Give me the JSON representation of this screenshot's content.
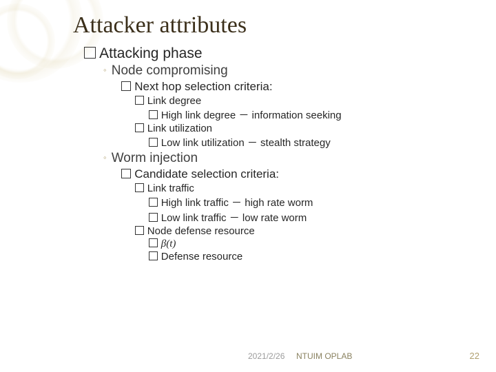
{
  "colors": {
    "title": "#3b2f1a",
    "body_text": "#262626",
    "l2_text": "#404040",
    "bullet_circle": "#b0a070",
    "footer_gray": "#9c9c9c",
    "footer_accent": "#8a8260",
    "page_number": "#b0a070",
    "background": "#ffffff"
  },
  "fonts": {
    "title_family": "Times New Roman",
    "body_family": "Arial",
    "title_size_pt": 34,
    "l1_size_pt": 21,
    "l2_size_pt": 19,
    "l3_size_pt": 17,
    "l4_size_pt": 15,
    "l5_size_pt": 15
  },
  "title": "Attacker attributes",
  "l1_heading": "Attacking phase",
  "sections": {
    "node": {
      "heading": "Node compromising",
      "criteria_label": "Next hop selection criteria:",
      "items": {
        "a": "Link degree",
        "a1": "High link degree － information seeking",
        "b": "Link utilization",
        "b1": "Low link utilization － stealth strategy"
      }
    },
    "worm": {
      "heading": "Worm injection",
      "criteria_label": "Candidate selection criteria:",
      "items": {
        "a": "Link traffic",
        "a1": "High link traffic － high rate worm",
        "a2": "Low link traffic － low rate worm",
        "b": "Node defense resource",
        "b1": "β(t)",
        "b2": "Defense resource"
      }
    }
  },
  "footer": {
    "date": "2021/2/26",
    "org": "NTUIM OPLAB",
    "page": "22"
  }
}
